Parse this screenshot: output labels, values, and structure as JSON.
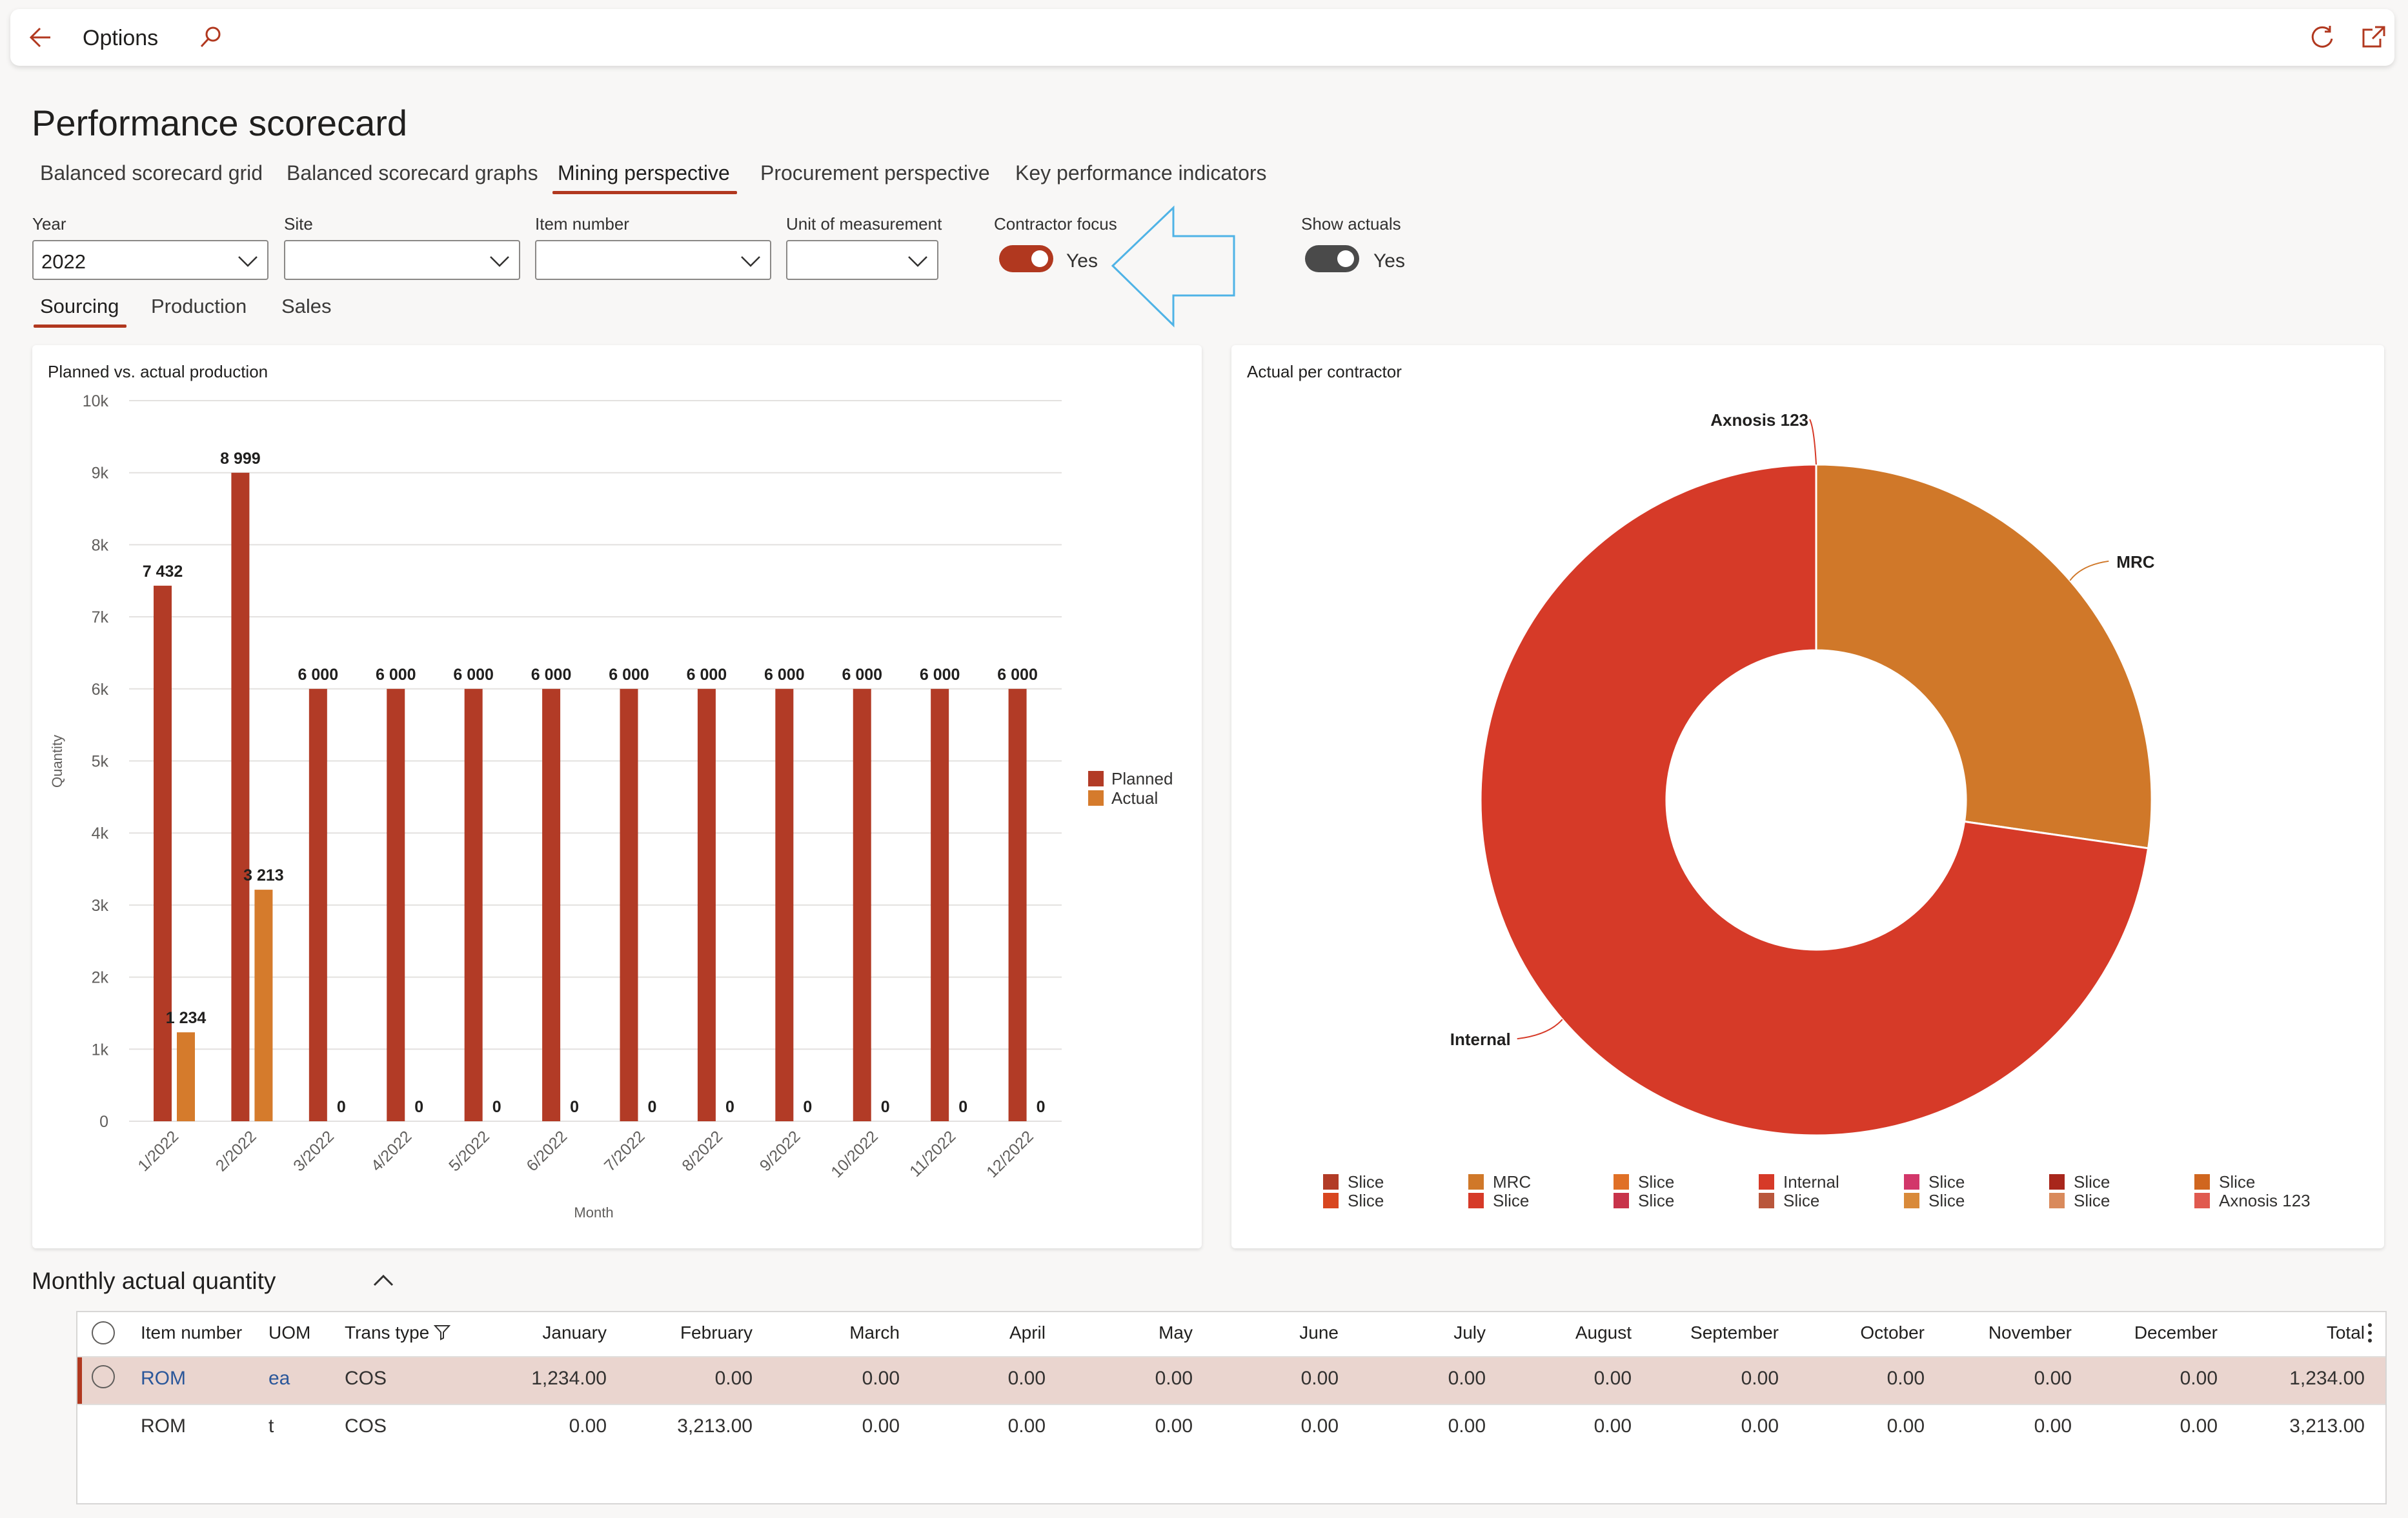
{
  "topbar": {
    "title": "Options",
    "icons": [
      "back-arrow-icon",
      "search-icon",
      "refresh-icon",
      "open-new-window-icon"
    ]
  },
  "page": {
    "title": "Performance scorecard"
  },
  "tabs": [
    {
      "label": "Balanced scorecard grid"
    },
    {
      "label": "Balanced scorecard graphs"
    },
    {
      "label": "Mining perspective",
      "active": true
    },
    {
      "label": "Procurement perspective"
    },
    {
      "label": "Key performance indicators"
    }
  ],
  "filters": {
    "year": {
      "label": "Year",
      "value": "2022"
    },
    "site": {
      "label": "Site",
      "value": ""
    },
    "item_number": {
      "label": "Item number",
      "value": ""
    },
    "unit": {
      "label": "Unit of measurement",
      "value": ""
    },
    "contractor_focus": {
      "label": "Contractor focus",
      "value": "Yes",
      "on": true
    },
    "show_actuals": {
      "label": "Show actuals",
      "value": "Yes",
      "on": true
    }
  },
  "subtabs": [
    {
      "label": "Sourcing",
      "active": true
    },
    {
      "label": "Production"
    },
    {
      "label": "Sales"
    }
  ],
  "colors": {
    "accent": "#b1381f",
    "planned": "#b23b26",
    "actual": "#d57b2c",
    "internal": "#d63a28",
    "mrc": "#d07829"
  },
  "chart_data": [
    {
      "type": "bar",
      "title": "Planned vs. actual production",
      "xlabel": "Month",
      "ylabel": "Quantity",
      "ylim": [
        0,
        10000
      ],
      "yticks": [
        "0",
        "1k",
        "2k",
        "3k",
        "4k",
        "5k",
        "6k",
        "7k",
        "8k",
        "9k",
        "10k"
      ],
      "categories": [
        "1/2022",
        "2/2022",
        "3/2022",
        "4/2022",
        "5/2022",
        "6/2022",
        "7/2022",
        "8/2022",
        "9/2022",
        "10/2022",
        "11/2022",
        "12/2022"
      ],
      "series": [
        {
          "name": "Planned",
          "values": [
            7432,
            8999,
            6000,
            6000,
            6000,
            6000,
            6000,
            6000,
            6000,
            6000,
            6000,
            6000
          ],
          "labels": [
            "7 432",
            "8 999",
            "6 000",
            "6 000",
            "6 000",
            "6 000",
            "6 000",
            "6 000",
            "6 000",
            "6 000",
            "6 000",
            "6 000"
          ]
        },
        {
          "name": "Actual",
          "values": [
            1234,
            3213,
            0,
            0,
            0,
            0,
            0,
            0,
            0,
            0,
            0,
            0
          ],
          "labels": [
            "1 234",
            "3 213",
            "0",
            "0",
            "0",
            "0",
            "0",
            "0",
            "0",
            "0",
            "0",
            "0"
          ]
        }
      ],
      "grid": true,
      "legend": "right"
    },
    {
      "type": "pie",
      "title": "Actual per contractor",
      "donut": true,
      "slices": [
        {
          "name": "MRC",
          "value": 27.3,
          "color": "#d07829"
        },
        {
          "name": "Internal",
          "value": 72.7,
          "color": "#d63a28"
        },
        {
          "name": "Axnosis 123",
          "value": 0,
          "color": "#d63a28"
        }
      ],
      "legend": "bottom",
      "legend_entries": [
        [
          "Slice",
          "Slice"
        ],
        [
          "MRC",
          "Slice"
        ],
        [
          "Slice",
          "Slice"
        ],
        [
          "Internal",
          "Slice"
        ],
        [
          "Slice",
          "Slice"
        ],
        [
          "Slice",
          "Slice"
        ],
        [
          "Slice",
          "Axnosis 123"
        ]
      ],
      "legend_colors": [
        [
          "#b23b26",
          "#d8461f"
        ],
        [
          "#d07829",
          "#d63a28"
        ],
        [
          "#e07026",
          "#c8334a"
        ],
        [
          "#d63a28",
          "#b9573c"
        ],
        [
          "#d2376a",
          "#d98a3a"
        ],
        [
          "#a8261b",
          "#d98a5c"
        ],
        [
          "#d0661f",
          "#e05a4f"
        ]
      ]
    }
  ],
  "section": {
    "title": "Monthly actual quantity"
  },
  "table": {
    "columns": [
      "Item number",
      "UOM",
      "Trans type",
      "January",
      "February",
      "March",
      "April",
      "May",
      "June",
      "July",
      "August",
      "September",
      "October",
      "November",
      "December",
      "Total"
    ],
    "rows": [
      [
        "ROM",
        "ea",
        "COS",
        "1,234.00",
        "0.00",
        "0.00",
        "0.00",
        "0.00",
        "0.00",
        "0.00",
        "0.00",
        "0.00",
        "0.00",
        "0.00",
        "0.00",
        "1,234.00"
      ],
      [
        "ROM",
        "t",
        "COS",
        "0.00",
        "3,213.00",
        "0.00",
        "0.00",
        "0.00",
        "0.00",
        "0.00",
        "0.00",
        "0.00",
        "0.00",
        "0.00",
        "0.00",
        "3,213.00"
      ]
    ]
  }
}
